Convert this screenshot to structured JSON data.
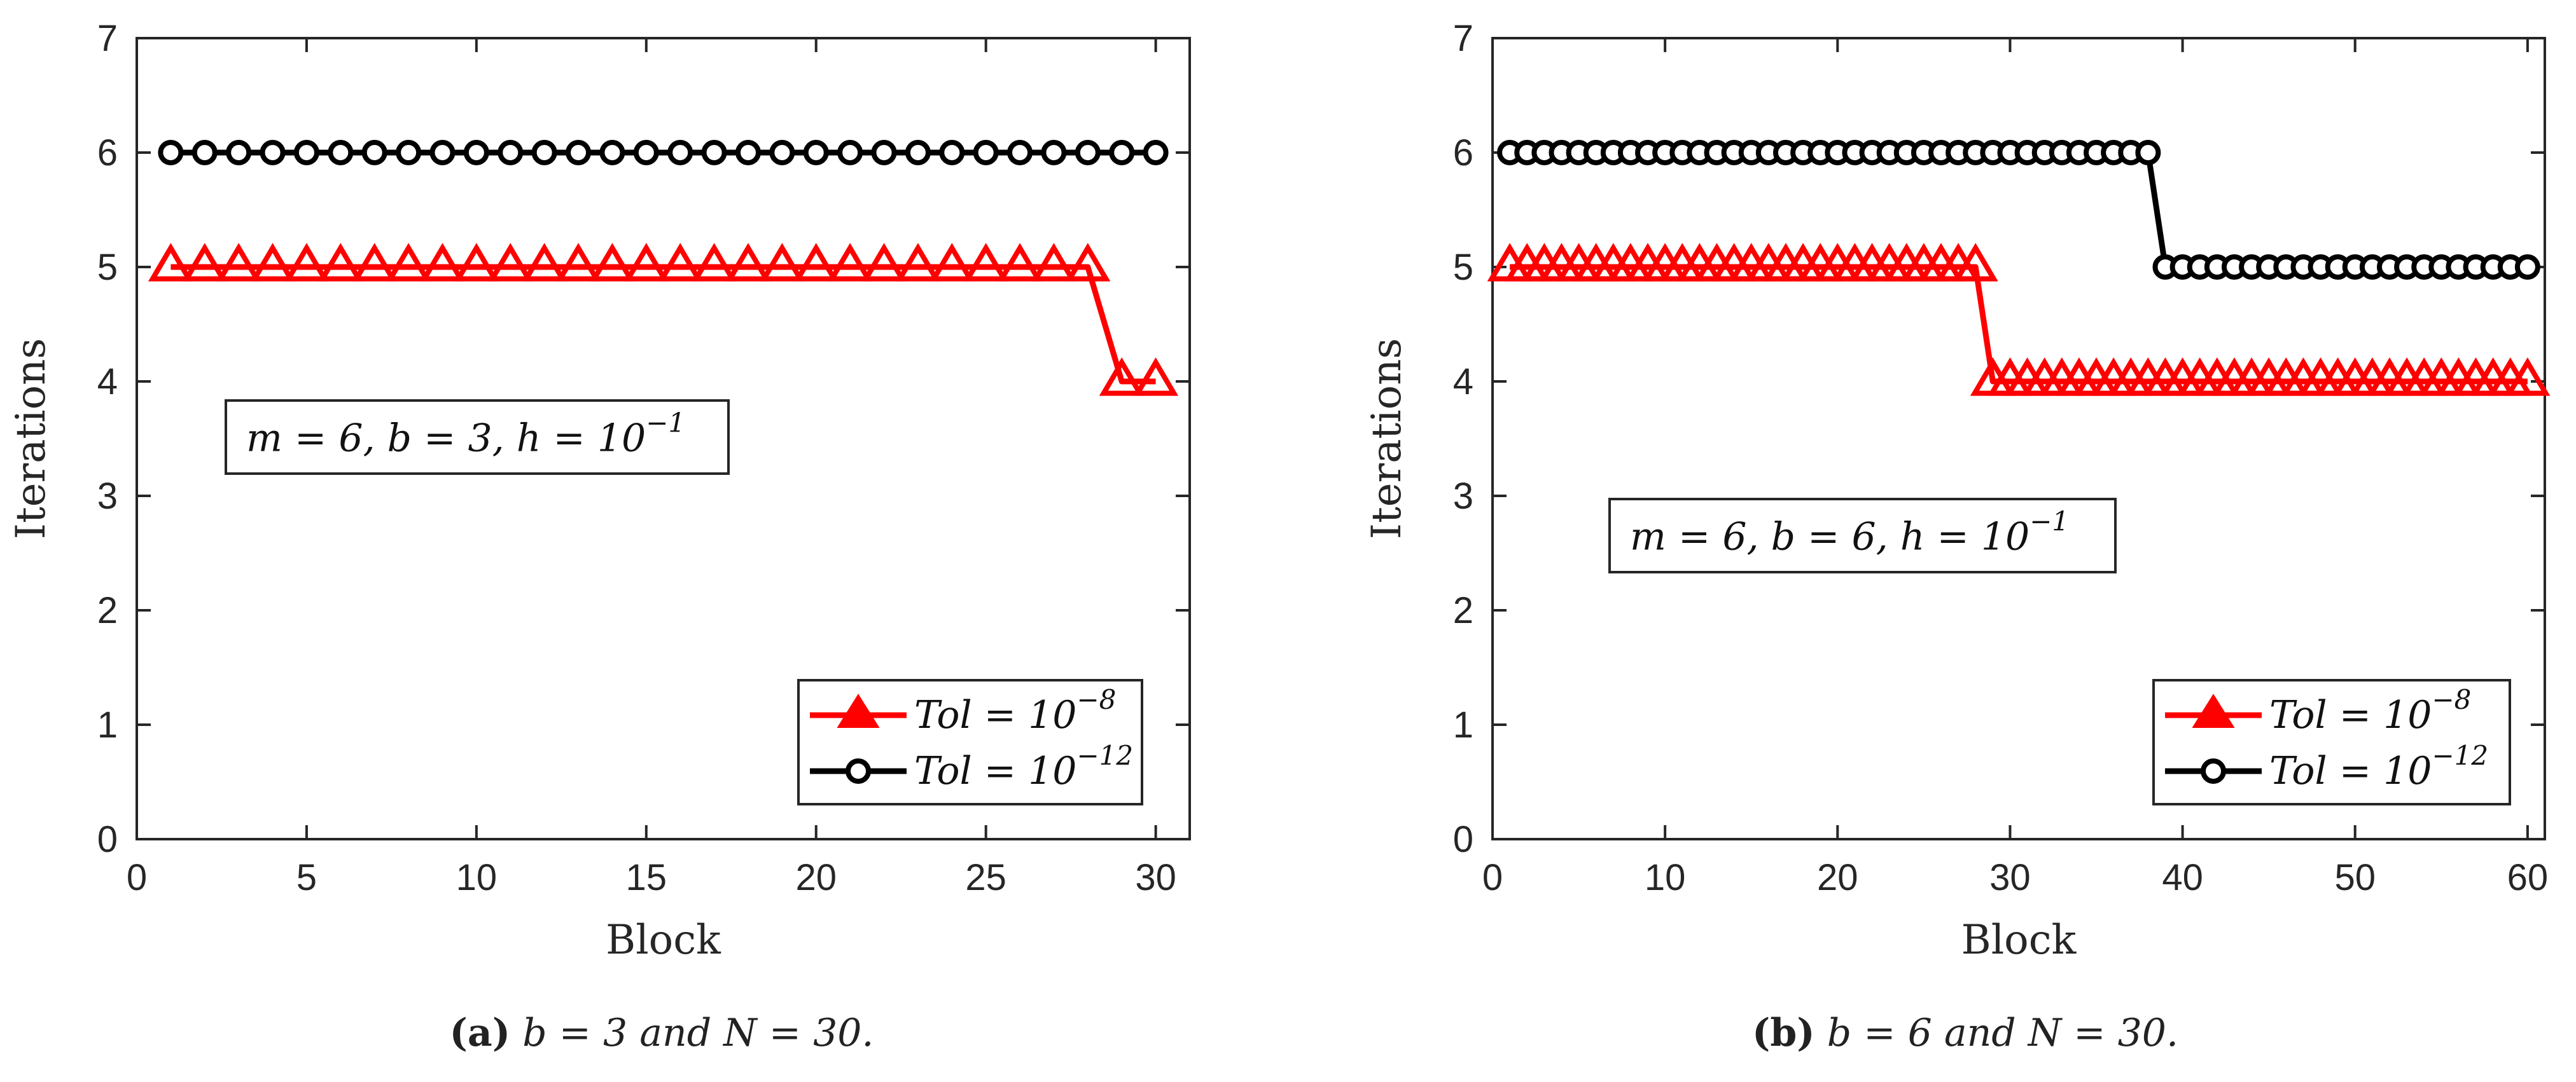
{
  "chart_data": [
    {
      "id": "a",
      "type": "line",
      "xlabel": "Block",
      "ylabel": "Iterations",
      "xlim": [
        0,
        31
      ],
      "ylim": [
        0,
        7
      ],
      "xticks": [
        0,
        5,
        10,
        15,
        20,
        25,
        30
      ],
      "yticks": [
        0,
        1,
        2,
        3,
        4,
        5,
        6,
        7
      ],
      "annotation": {
        "text": "m = 6, b = 3, h = 10",
        "sup": "−1"
      },
      "series": [
        {
          "name": "Tol = 10^-8",
          "label_main": "Tol = 10",
          "label_sup": "−8",
          "color": "#ff0000",
          "marker": "triangle",
          "x": [
            1,
            2,
            3,
            4,
            5,
            6,
            7,
            8,
            9,
            10,
            11,
            12,
            13,
            14,
            15,
            16,
            17,
            18,
            19,
            20,
            21,
            22,
            23,
            24,
            25,
            26,
            27,
            28,
            29,
            30
          ],
          "y": [
            5,
            5,
            5,
            5,
            5,
            5,
            5,
            5,
            5,
            5,
            5,
            5,
            5,
            5,
            5,
            5,
            5,
            5,
            5,
            5,
            5,
            5,
            5,
            5,
            5,
            5,
            5,
            5,
            4,
            4
          ]
        },
        {
          "name": "Tol = 10^-12",
          "label_main": "Tol = 10",
          "label_sup": "−12",
          "color": "#000000",
          "marker": "circle",
          "x": [
            1,
            2,
            3,
            4,
            5,
            6,
            7,
            8,
            9,
            10,
            11,
            12,
            13,
            14,
            15,
            16,
            17,
            18,
            19,
            20,
            21,
            22,
            23,
            24,
            25,
            26,
            27,
            28,
            29,
            30
          ],
          "y": [
            6,
            6,
            6,
            6,
            6,
            6,
            6,
            6,
            6,
            6,
            6,
            6,
            6,
            6,
            6,
            6,
            6,
            6,
            6,
            6,
            6,
            6,
            6,
            6,
            6,
            6,
            6,
            6,
            6,
            6
          ]
        }
      ],
      "legend_position": "bottom-right",
      "caption": {
        "label": "(a)",
        "text": "b = 3 and N = 30."
      }
    },
    {
      "id": "b",
      "type": "line",
      "xlabel": "Block",
      "ylabel": "Iterations",
      "xlim": [
        0,
        61
      ],
      "ylim": [
        0,
        7
      ],
      "xticks": [
        0,
        10,
        20,
        30,
        40,
        50,
        60
      ],
      "yticks": [
        0,
        1,
        2,
        3,
        4,
        5,
        6,
        7
      ],
      "annotation": {
        "text": "m = 6, b = 6, h = 10",
        "sup": "−1"
      },
      "series": [
        {
          "name": "Tol = 10^-8",
          "label_main": "Tol = 10",
          "label_sup": "−8",
          "color": "#ff0000",
          "marker": "triangle",
          "x": [
            1,
            2,
            3,
            4,
            5,
            6,
            7,
            8,
            9,
            10,
            11,
            12,
            13,
            14,
            15,
            16,
            17,
            18,
            19,
            20,
            21,
            22,
            23,
            24,
            25,
            26,
            27,
            28,
            29,
            30,
            31,
            32,
            33,
            34,
            35,
            36,
            37,
            38,
            39,
            40,
            41,
            42,
            43,
            44,
            45,
            46,
            47,
            48,
            49,
            50,
            51,
            52,
            53,
            54,
            55,
            56,
            57,
            58,
            59,
            60
          ],
          "y": [
            5,
            5,
            5,
            5,
            5,
            5,
            5,
            5,
            5,
            5,
            5,
            5,
            5,
            5,
            5,
            5,
            5,
            5,
            5,
            5,
            5,
            5,
            5,
            5,
            5,
            5,
            5,
            5,
            4,
            4,
            4,
            4,
            4,
            4,
            4,
            4,
            4,
            4,
            4,
            4,
            4,
            4,
            4,
            4,
            4,
            4,
            4,
            4,
            4,
            4,
            4,
            4,
            4,
            4,
            4,
            4,
            4,
            4,
            4,
            4
          ]
        },
        {
          "name": "Tol = 10^-12",
          "label_main": "Tol = 10",
          "label_sup": "−12",
          "color": "#000000",
          "marker": "circle",
          "x": [
            1,
            2,
            3,
            4,
            5,
            6,
            7,
            8,
            9,
            10,
            11,
            12,
            13,
            14,
            15,
            16,
            17,
            18,
            19,
            20,
            21,
            22,
            23,
            24,
            25,
            26,
            27,
            28,
            29,
            30,
            31,
            32,
            33,
            34,
            35,
            36,
            37,
            38,
            39,
            40,
            41,
            42,
            43,
            44,
            45,
            46,
            47,
            48,
            49,
            50,
            51,
            52,
            53,
            54,
            55,
            56,
            57,
            58,
            59,
            60
          ],
          "y": [
            6,
            6,
            6,
            6,
            6,
            6,
            6,
            6,
            6,
            6,
            6,
            6,
            6,
            6,
            6,
            6,
            6,
            6,
            6,
            6,
            6,
            6,
            6,
            6,
            6,
            6,
            6,
            6,
            6,
            6,
            6,
            6,
            6,
            6,
            6,
            6,
            6,
            6,
            5,
            5,
            5,
            5,
            5,
            5,
            5,
            5,
            5,
            5,
            5,
            5,
            5,
            5,
            5,
            5,
            5,
            5,
            5,
            5,
            5,
            5
          ]
        }
      ],
      "legend_position": "bottom-right",
      "caption": {
        "label": "(b)",
        "text": "b = 6 and N = 30."
      }
    }
  ]
}
